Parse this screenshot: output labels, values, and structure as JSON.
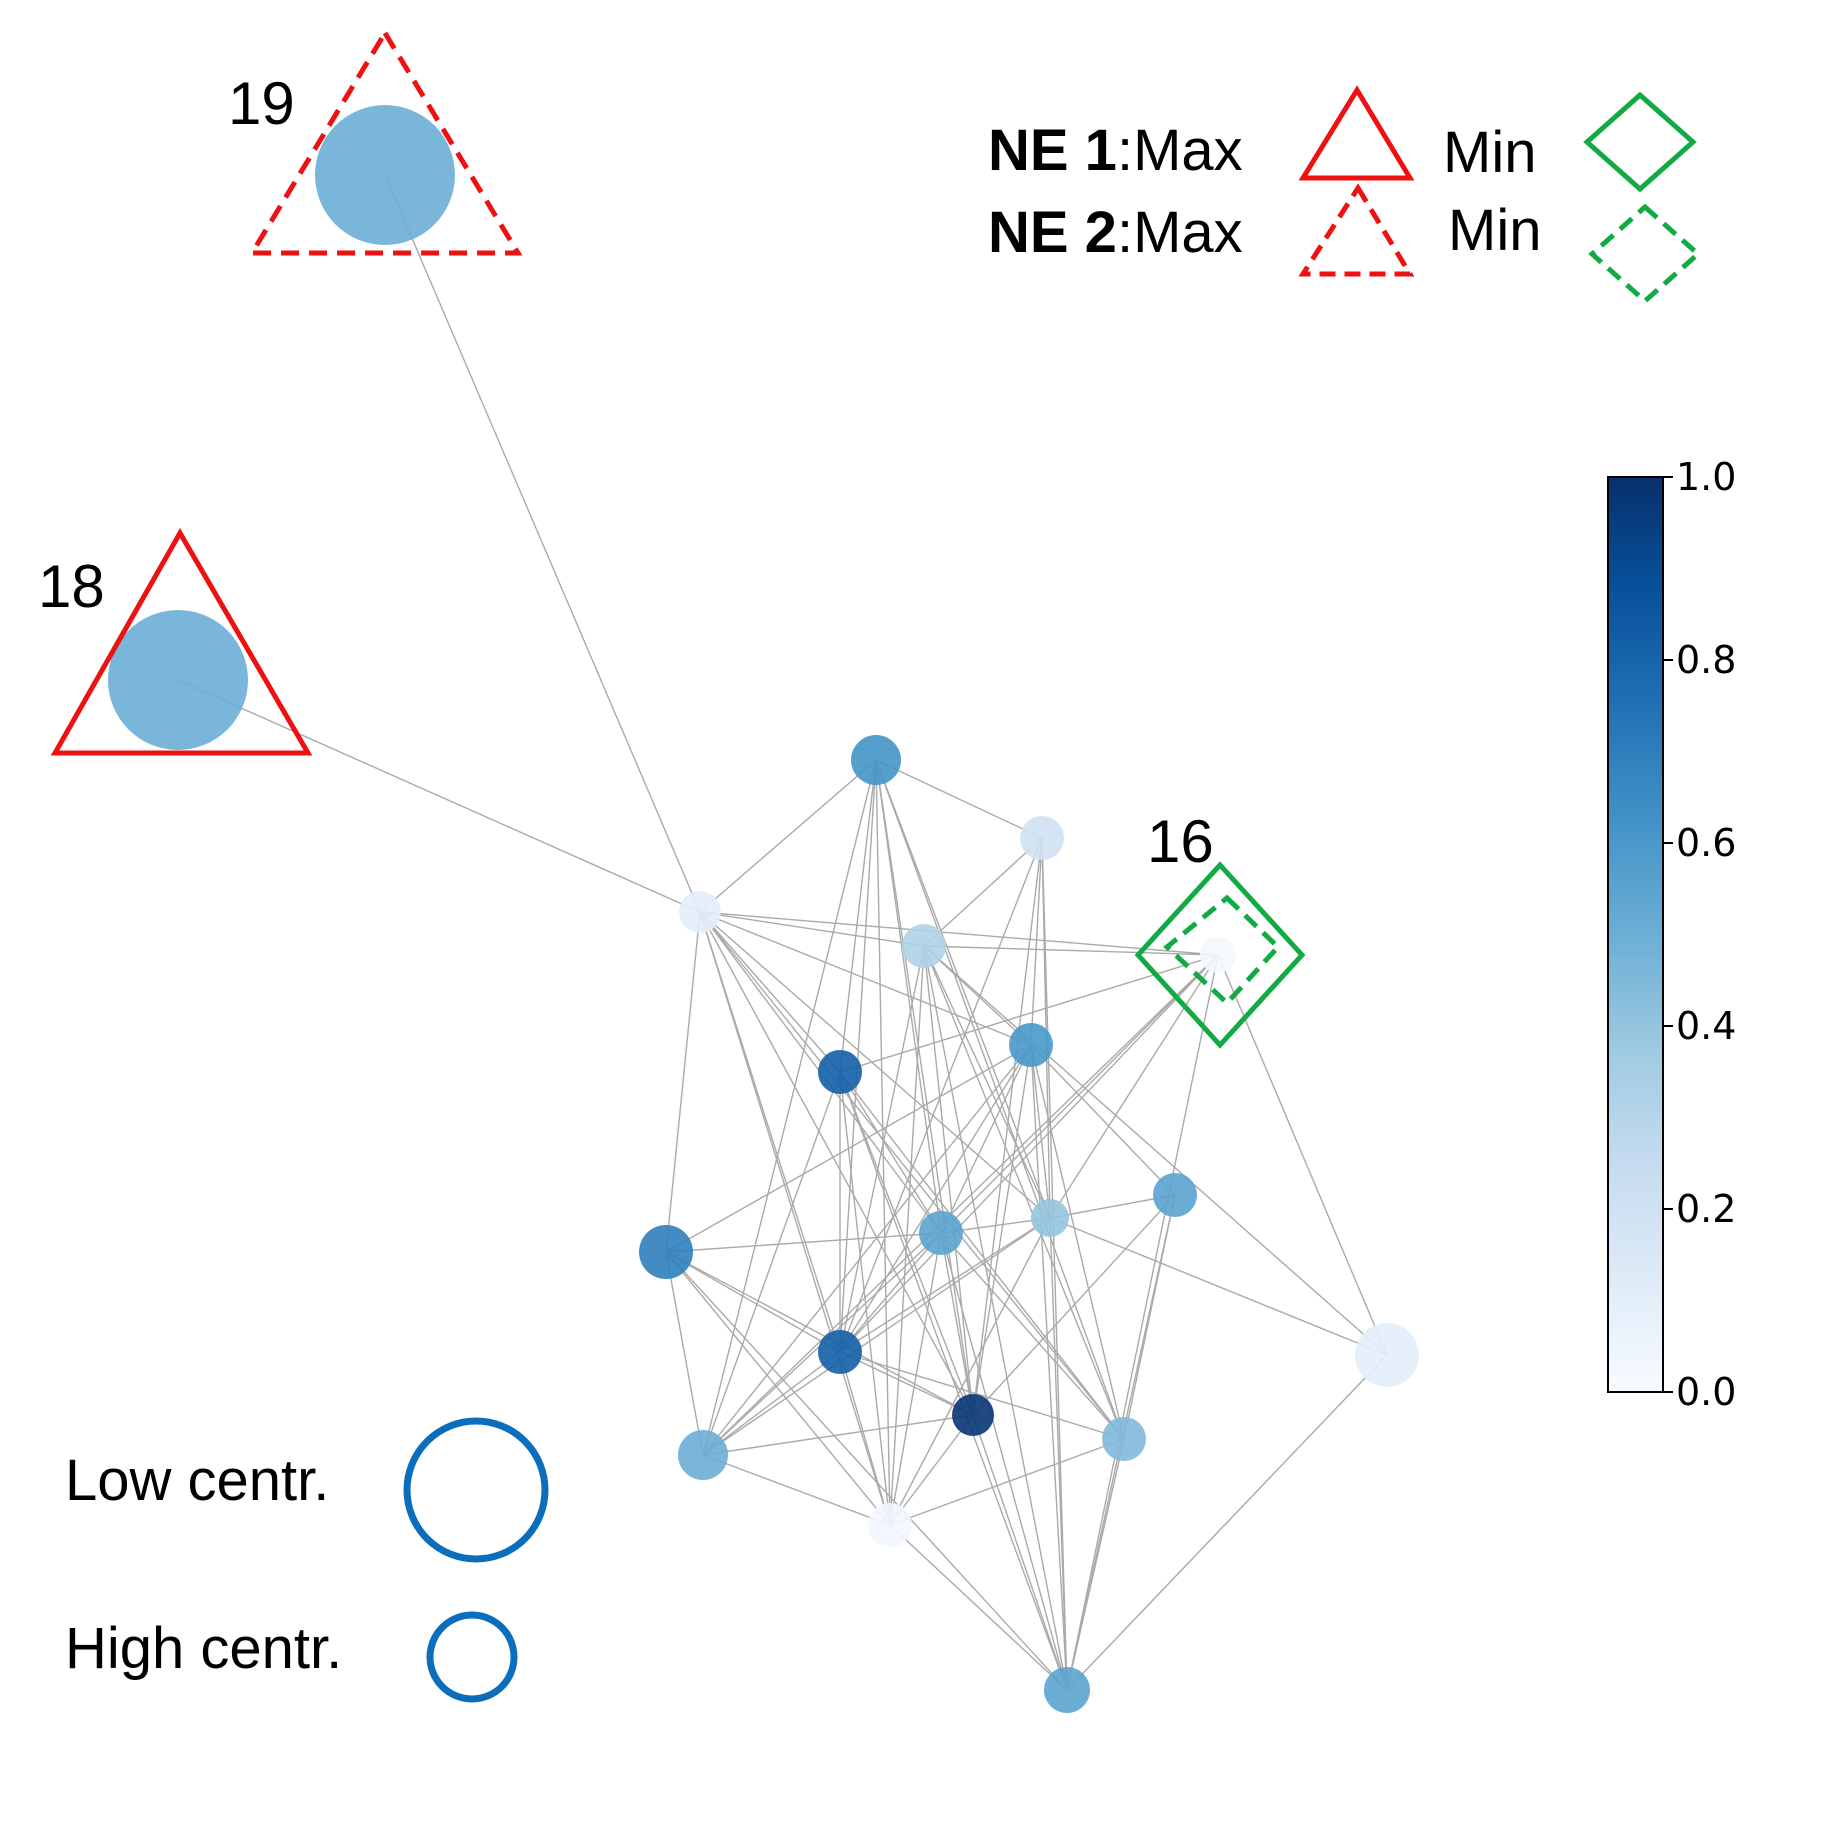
{
  "node_labels": {
    "n19": "19",
    "n18": "18",
    "n16": "16"
  },
  "legend": {
    "ne1": {
      "name": "NE 1",
      "max_text": ":Max",
      "min_text": "Min"
    },
    "ne2": {
      "name": "NE 2",
      "max_text": ":Max",
      "min_text": "Min"
    },
    "colors": {
      "max": "#ee1111",
      "min": "#11aa44"
    }
  },
  "size_legend": {
    "low": "Low centr.",
    "high": "High centr.",
    "color": "#0a6ebd"
  },
  "colorbar": {
    "ticks": [
      "0.0",
      "0.2",
      "0.4",
      "0.6",
      "0.8",
      "1.0"
    ],
    "colormap": "Blues",
    "range": [
      0,
      1
    ]
  },
  "graph": {
    "edge_color": "#aaaaaa",
    "nodes": [
      {
        "id": "n19",
        "value": 0.5
      },
      {
        "id": "n18",
        "value": 0.5
      },
      {
        "id": "a",
        "value": 0.62
      },
      {
        "id": "b",
        "value": 0.2
      },
      {
        "id": "c",
        "value": 0.1
      },
      {
        "id": "d",
        "value": 0.32
      },
      {
        "id": "n16",
        "value": 0.02
      },
      {
        "id": "e",
        "value": 0.6
      },
      {
        "id": "f",
        "value": 0.82
      },
      {
        "id": "g",
        "value": 0.55
      },
      {
        "id": "h",
        "value": 0.4
      },
      {
        "id": "i",
        "value": 0.55
      },
      {
        "id": "j",
        "value": 0.7
      },
      {
        "id": "k",
        "value": 0.82
      },
      {
        "id": "l",
        "value": 0.1
      },
      {
        "id": "m",
        "value": 0.98
      },
      {
        "id": "n",
        "value": 0.45
      },
      {
        "id": "o",
        "value": 0.5
      },
      {
        "id": "p",
        "value": 0.03
      },
      {
        "id": "q",
        "value": 0.55
      }
    ]
  }
}
